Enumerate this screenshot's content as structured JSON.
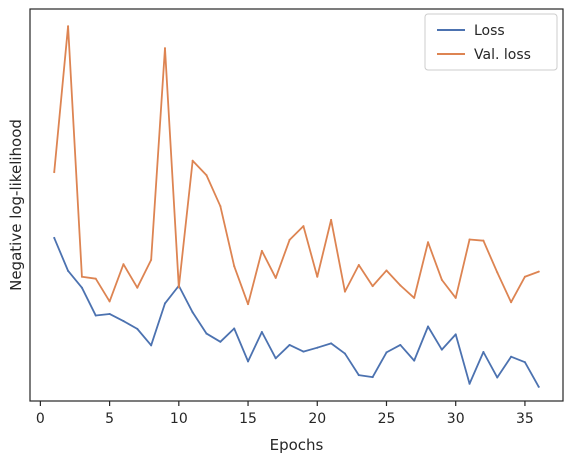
{
  "chart_data": {
    "type": "line",
    "title": "",
    "xlabel": "Epochs",
    "ylabel": "Negative log-likelihood",
    "xlim": [
      -0.75,
      37.75
    ],
    "ylim": [
      0.0,
      1.0
    ],
    "xticks": [
      0,
      5,
      10,
      15,
      20,
      25,
      30,
      35
    ],
    "yticks_shown": false,
    "grid": false,
    "legend_position": "top-right",
    "x": [
      1,
      2,
      3,
      4,
      5,
      6,
      7,
      8,
      9,
      10,
      11,
      12,
      13,
      14,
      15,
      16,
      17,
      18,
      19,
      20,
      21,
      22,
      23,
      24,
      25,
      26,
      27,
      28,
      29,
      30,
      31,
      32,
      33,
      34,
      35,
      36
    ],
    "series": [
      {
        "name": "Loss",
        "color": "#4c72b0",
        "values": [
          0.416,
          0.332,
          0.289,
          0.218,
          0.222,
          0.204,
          0.184,
          0.142,
          0.249,
          0.294,
          0.226,
          0.172,
          0.151,
          0.185,
          0.101,
          0.176,
          0.109,
          0.143,
          0.126,
          0.136,
          0.147,
          0.121,
          0.066,
          0.061,
          0.124,
          0.143,
          0.103,
          0.19,
          0.131,
          0.17,
          0.044,
          0.125,
          0.06,
          0.113,
          0.099,
          0.036
        ]
      },
      {
        "name": "Val. loss",
        "color": "#dd8452",
        "values": [
          0.584,
          0.956,
          0.317,
          0.312,
          0.254,
          0.349,
          0.289,
          0.36,
          0.9,
          0.29,
          0.613,
          0.576,
          0.497,
          0.344,
          0.247,
          0.383,
          0.314,
          0.411,
          0.446,
          0.317,
          0.462,
          0.279,
          0.347,
          0.293,
          0.333,
          0.295,
          0.263,
          0.405,
          0.309,
          0.263,
          0.412,
          0.409,
          0.328,
          0.252,
          0.317,
          0.33
        ]
      }
    ]
  }
}
